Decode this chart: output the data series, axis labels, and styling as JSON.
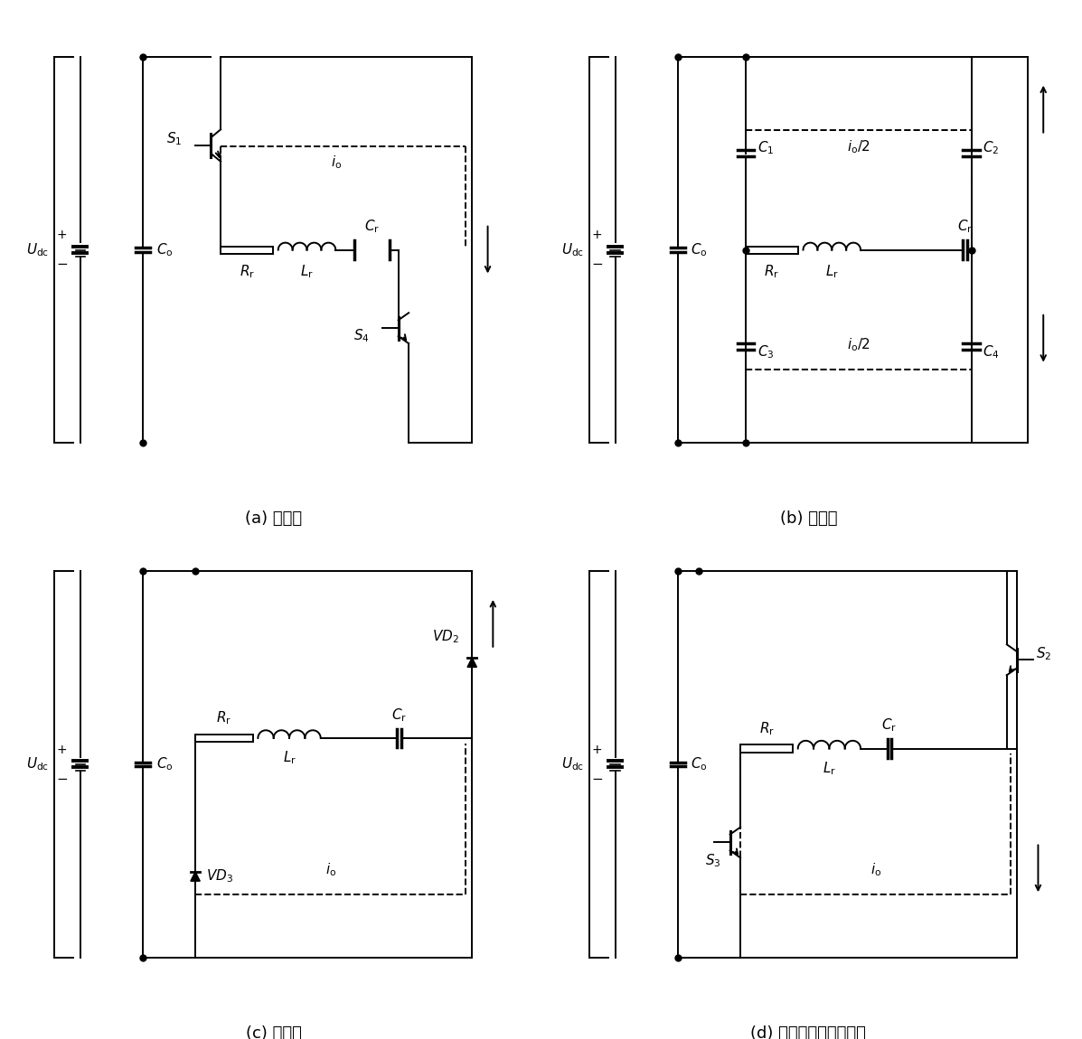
{
  "background_color": "#ffffff",
  "line_color": "#000000",
  "subtitles": [
    "(a) 换向前",
    "(b) 换向中",
    "(c) 换向后",
    "(d) 负载电流改变方向后"
  ],
  "subtitle_fontsize": 13,
  "lw": 1.4
}
